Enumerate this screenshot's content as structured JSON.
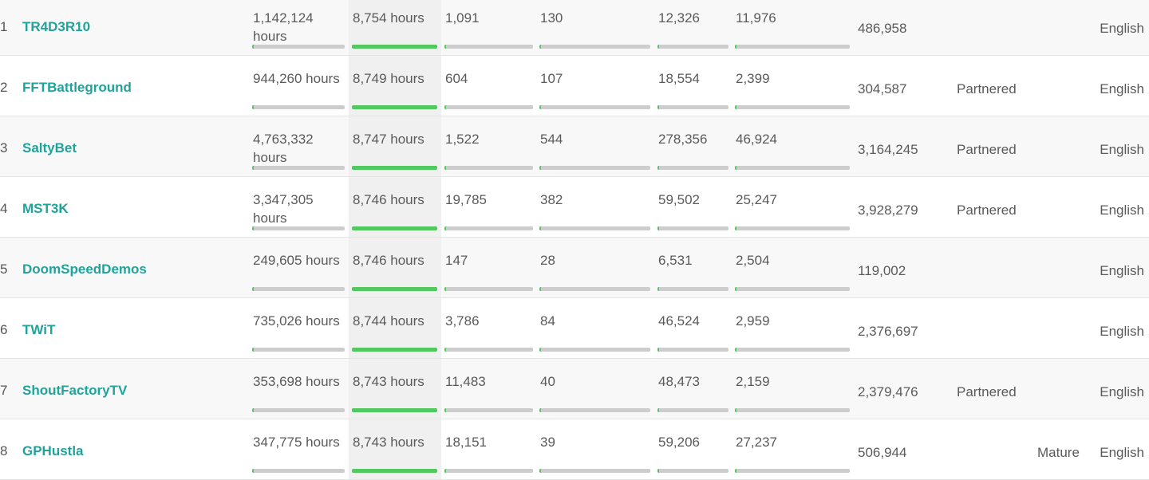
{
  "colors": {
    "accent": "#1fa39a",
    "bar_fill": "#51c95f",
    "bar_track": "#cdcdcd"
  },
  "rows": [
    {
      "rank": "1",
      "name": "TR4D3R10",
      "total": "1,142,124 hours",
      "stream": "8,754 hours",
      "avg": "1,091",
      "peak": "130",
      "followers": "12,326",
      "f_gained": "11,976",
      "views": "486,958",
      "partner": "",
      "mature": "",
      "language": "English",
      "bars": {
        "total": 0.02,
        "stream": 1.0,
        "avg": 0.01,
        "peak": 0.01,
        "followers": 0.01,
        "f_gained": 0.01
      }
    },
    {
      "rank": "2",
      "name": "FFTBattleground",
      "total": "944,260 hours",
      "stream": "8,749 hours",
      "avg": "604",
      "peak": "107",
      "followers": "18,554",
      "f_gained": "2,399",
      "views": "304,587",
      "partner": "Partnered",
      "mature": "",
      "language": "English",
      "bars": {
        "total": 0.01,
        "stream": 1.0,
        "avg": 0.01,
        "peak": 0.01,
        "followers": 0.01,
        "f_gained": 0.01
      }
    },
    {
      "rank": "3",
      "name": "SaltyBet",
      "total": "4,763,332 hours",
      "stream": "8,747 hours",
      "avg": "1,522",
      "peak": "544",
      "followers": "278,356",
      "f_gained": "46,924",
      "views": "3,164,245",
      "partner": "Partnered",
      "mature": "",
      "language": "English",
      "bars": {
        "total": 0.02,
        "stream": 1.0,
        "avg": 0.01,
        "peak": 0.01,
        "followers": 0.02,
        "f_gained": 0.01
      }
    },
    {
      "rank": "4",
      "name": "MST3K",
      "total": "3,347,305 hours",
      "stream": "8,746 hours",
      "avg": "19,785",
      "peak": "382",
      "followers": "59,502",
      "f_gained": "25,247",
      "views": "3,928,279",
      "partner": "Partnered",
      "mature": "",
      "language": "English",
      "bars": {
        "total": 0.02,
        "stream": 1.0,
        "avg": 0.01,
        "peak": 0.01,
        "followers": 0.01,
        "f_gained": 0.01
      }
    },
    {
      "rank": "5",
      "name": "DoomSpeedDemos",
      "total": "249,605 hours",
      "stream": "8,746 hours",
      "avg": "147",
      "peak": "28",
      "followers": "6,531",
      "f_gained": "2,504",
      "views": "119,002",
      "partner": "",
      "mature": "",
      "language": "English",
      "bars": {
        "total": 0.01,
        "stream": 1.0,
        "avg": 0.01,
        "peak": 0.01,
        "followers": 0.01,
        "f_gained": 0.01
      }
    },
    {
      "rank": "6",
      "name": "TWiT",
      "total": "735,026 hours",
      "stream": "8,744 hours",
      "avg": "3,786",
      "peak": "84",
      "followers": "46,524",
      "f_gained": "2,959",
      "views": "2,376,697",
      "partner": "",
      "mature": "",
      "language": "English",
      "bars": {
        "total": 0.01,
        "stream": 1.0,
        "avg": 0.01,
        "peak": 0.01,
        "followers": 0.01,
        "f_gained": 0.01
      }
    },
    {
      "rank": "7",
      "name": "ShoutFactoryTV",
      "total": "353,698 hours",
      "stream": "8,743 hours",
      "avg": "11,483",
      "peak": "40",
      "followers": "48,473",
      "f_gained": "2,159",
      "views": "2,379,476",
      "partner": "Partnered",
      "mature": "",
      "language": "English",
      "bars": {
        "total": 0.01,
        "stream": 1.0,
        "avg": 0.01,
        "peak": 0.01,
        "followers": 0.01,
        "f_gained": 0.01
      }
    },
    {
      "rank": "8",
      "name": "GPHustla",
      "total": "347,775 hours",
      "stream": "8,743 hours",
      "avg": "18,151",
      "peak": "39",
      "followers": "59,206",
      "f_gained": "27,237",
      "views": "506,944",
      "partner": "",
      "mature": "Mature",
      "language": "English",
      "bars": {
        "total": 0.01,
        "stream": 1.0,
        "avg": 0.01,
        "peak": 0.01,
        "followers": 0.01,
        "f_gained": 0.01
      }
    }
  ]
}
